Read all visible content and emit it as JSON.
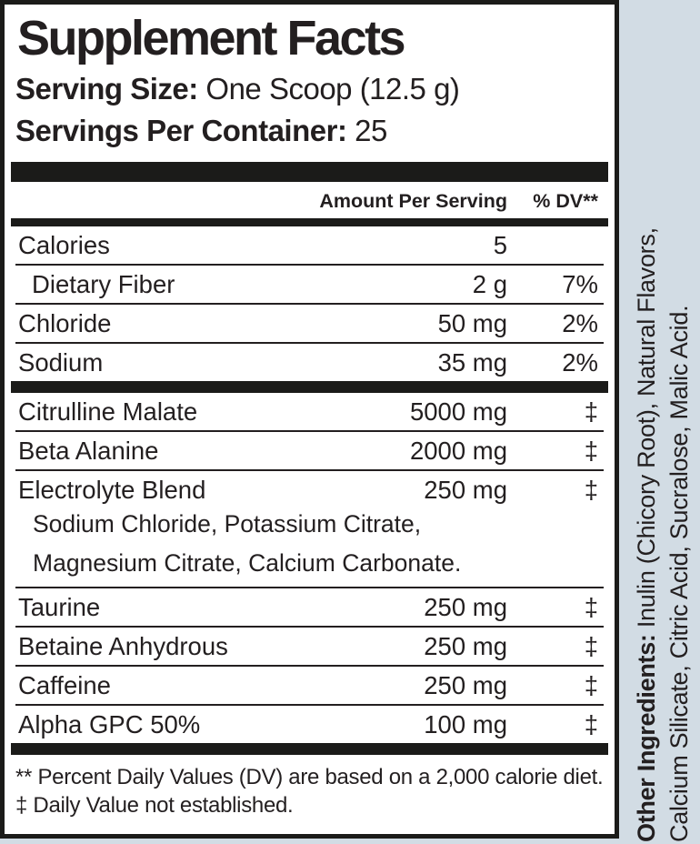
{
  "colors": {
    "background": "#d2dce4",
    "ink": "#231f20",
    "panel_bg": "#ffffff"
  },
  "panel": {
    "title": "Supplement Facts",
    "serving_size": {
      "label": "Serving Size:",
      "value": "One Scoop (12.5 g)"
    },
    "servings_per_container": {
      "label": "Servings Per Container:",
      "value": "25"
    },
    "columns": {
      "amount": "Amount Per Serving",
      "dv": "% DV**"
    },
    "sections": [
      {
        "rows": [
          {
            "name": "Calories",
            "amount": "5",
            "dv": ""
          },
          {
            "name": "Dietary Fiber",
            "amount": "2 g",
            "dv": "7%",
            "indent": true
          },
          {
            "name": "Chloride",
            "amount": "50 mg",
            "dv": "2%"
          },
          {
            "name": "Sodium",
            "amount": "35 mg",
            "dv": "2%"
          }
        ]
      },
      {
        "rows": [
          {
            "name": "Citrulline Malate",
            "amount": "5000 mg",
            "dv": "‡"
          },
          {
            "name": "Beta Alanine",
            "amount": "2000 mg",
            "dv": "‡"
          },
          {
            "name": "Electrolyte Blend",
            "amount": "250 mg",
            "dv": "‡",
            "sub": [
              "Sodium Chloride, Potassium Citrate,",
              "Magnesium Citrate, Calcium Carbonate."
            ]
          },
          {
            "name": "Taurine",
            "amount": "250 mg",
            "dv": "‡"
          },
          {
            "name": "Betaine Anhydrous",
            "amount": "250 mg",
            "dv": "‡"
          },
          {
            "name": "Caffeine",
            "amount": "250 mg",
            "dv": "‡"
          },
          {
            "name": "Alpha GPC 50%",
            "amount": "100 mg",
            "dv": "‡"
          }
        ]
      }
    ],
    "footnotes": [
      "** Percent Daily Values (DV) are based on a 2,000 calorie diet.",
      "‡ Daily Value not established."
    ]
  },
  "side_text": {
    "bold_label": "Other Ingredients:",
    "line1_rest": " Inulin (Chicory Root), Natural Flavors,",
    "line2": "Calcium Silicate, Citric Acid, Sucralose, Malic Acid."
  }
}
